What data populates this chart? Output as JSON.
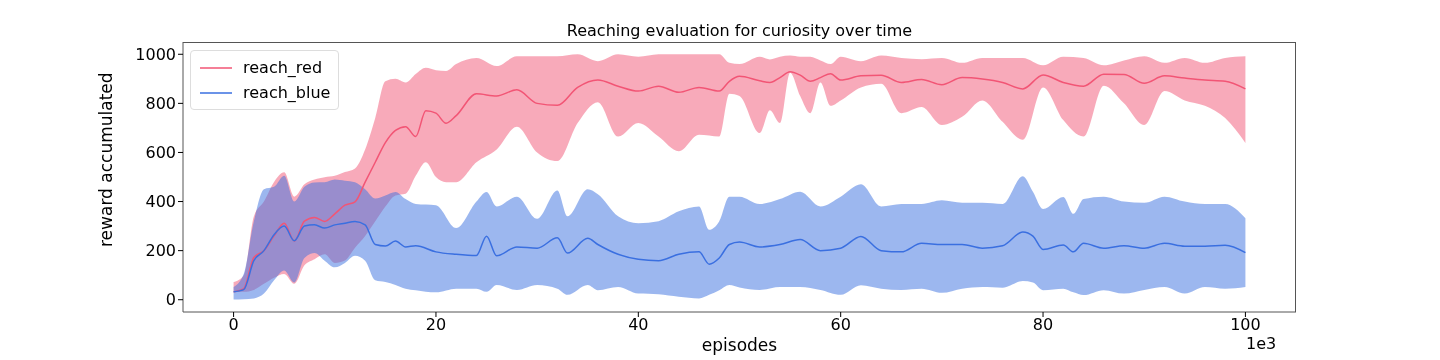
{
  "chart_data": {
    "type": "line",
    "title": "Reaching evaluation for curiosity over time",
    "xlabel": "episodes",
    "ylabel": "reward accumulated",
    "annotations": [
      "1e3"
    ],
    "xlim": [
      -5,
      105
    ],
    "ylim": [
      -50,
      1050
    ],
    "xticks": [
      0,
      20,
      40,
      60,
      80,
      100
    ],
    "yticks": [
      0,
      200,
      400,
      600,
      800,
      1000
    ],
    "legend": "top left",
    "line_style": "solid",
    "marker": "none",
    "series": [
      {
        "name": "reach_red",
        "color": "#f25575",
        "x": [
          0,
          1,
          2,
          3,
          4,
          5,
          6,
          7,
          8,
          9,
          10,
          11,
          12,
          13,
          14,
          15,
          16,
          17,
          18,
          19,
          20,
          21,
          22,
          24,
          26,
          28,
          30,
          32,
          34,
          36,
          38,
          40,
          42,
          44,
          46,
          48,
          49,
          50,
          52,
          53,
          54,
          55,
          56,
          57,
          58,
          59,
          60,
          62,
          64,
          66,
          68,
          70,
          72,
          74,
          76,
          78,
          80,
          82,
          84,
          86,
          88,
          90,
          92,
          94,
          96,
          98,
          100
        ],
        "values": [
          32,
          45,
          172,
          200,
          260,
          312,
          239,
          320,
          335,
          319,
          350,
          385,
          399,
          479,
          560,
          640,
          690,
          705,
          665,
          770,
          760,
          719,
          750,
          839,
          830,
          855,
          800,
          792,
          865,
          895,
          870,
          850,
          870,
          845,
          865,
          850,
          890,
          910,
          892,
          885,
          905,
          929,
          915,
          890,
          905,
          921,
          895,
          912,
          915,
          885,
          897,
          876,
          905,
          899,
          885,
          859,
          916,
          885,
          870,
          919,
          918,
          882,
          912,
          903,
          895,
          890,
          859
        ],
        "lower": [
          32,
          32,
          40,
          65,
          90,
          105,
          65,
          140,
          165,
          185,
          150,
          160,
          212,
          260,
          320,
          380,
          425,
          432,
          505,
          560,
          500,
          479,
          479,
          560,
          612,
          705,
          600,
          565,
          720,
          805,
          665,
          720,
          665,
          605,
          672,
          665,
          839,
          830,
          679,
          772,
          720,
          925,
          830,
          760,
          885,
          790,
          812,
          865,
          880,
          760,
          785,
          712,
          745,
          812,
          725,
          652,
          865,
          732,
          665,
          872,
          800,
          712,
          850,
          812,
          790,
          740,
          639
        ],
        "upper": [
          72,
          99,
          339,
          400,
          480,
          519,
          420,
          470,
          490,
          499,
          505,
          520,
          535,
          612,
          740,
          890,
          900,
          885,
          920,
          945,
          935,
          932,
          960,
          985,
          952,
          992,
          992,
          992,
          1000,
          972,
          1000,
          990,
          1000,
          1000,
          1000,
          1000,
          965,
          960,
          990,
          979,
          990,
          995,
          990,
          990,
          975,
          960,
          990,
          972,
          995,
          985,
          980,
          985,
          965,
          985,
          985,
          985,
          955,
          990,
          985,
          955,
          975,
          992,
          965,
          985,
          965,
          985,
          992
        ]
      },
      {
        "name": "reach_blue",
        "color": "#3a6fe0",
        "x": [
          0,
          1,
          2,
          3,
          4,
          5,
          6,
          7,
          8,
          9,
          10,
          11,
          12,
          13,
          14,
          15,
          16,
          17,
          18,
          20,
          22,
          24,
          25,
          26,
          28,
          30,
          32,
          33,
          35,
          36,
          38,
          40,
          42,
          44,
          46,
          47,
          48,
          49,
          50,
          52,
          54,
          56,
          58,
          60,
          62,
          64,
          66,
          68,
          70,
          72,
          74,
          76,
          78,
          79,
          80,
          82,
          83,
          84,
          86,
          88,
          90,
          92,
          94,
          96,
          98,
          100
        ],
        "values": [
          32,
          41,
          159,
          200,
          265,
          300,
          240,
          300,
          305,
          292,
          305,
          312,
          319,
          305,
          225,
          219,
          239,
          215,
          220,
          195,
          185,
          180,
          259,
          179,
          215,
          210,
          252,
          190,
          250,
          225,
          185,
          165,
          159,
          185,
          195,
          145,
          170,
          225,
          235,
          215,
          225,
          245,
          200,
          210,
          258,
          200,
          195,
          230,
          225,
          225,
          210,
          220,
          276,
          259,
          205,
          223,
          195,
          230,
          210,
          220,
          210,
          230,
          218,
          218,
          222,
          192
        ],
        "lower": [
          1,
          2,
          5,
          25,
          79,
          119,
          70,
          170,
          190,
          159,
          132,
          150,
          179,
          159,
          79,
          72,
          60,
          45,
          39,
          30,
          45,
          45,
          32,
          60,
          40,
          60,
          45,
          20,
          60,
          39,
          52,
          25,
          22,
          12,
          5,
          20,
          39,
          60,
          50,
          40,
          52,
          52,
          40,
          20,
          59,
          45,
          40,
          45,
          28,
          45,
          52,
          49,
          76,
          70,
          39,
          45,
          30,
          19,
          39,
          25,
          40,
          52,
          25,
          52,
          45,
          52
        ],
        "upper": [
          52,
          105,
          319,
          450,
          460,
          505,
          400,
          460,
          478,
          479,
          490,
          485,
          479,
          450,
          412,
          425,
          439,
          410,
          390,
          385,
          292,
          400,
          439,
          380,
          420,
          330,
          445,
          340,
          450,
          430,
          340,
          312,
          320,
          360,
          380,
          285,
          320,
          420,
          420,
          390,
          410,
          440,
          380,
          420,
          470,
          380,
          390,
          390,
          405,
          395,
          395,
          390,
          503,
          440,
          370,
          419,
          350,
          410,
          420,
          400,
          395,
          420,
          400,
          390,
          390,
          332
        ]
      }
    ]
  }
}
